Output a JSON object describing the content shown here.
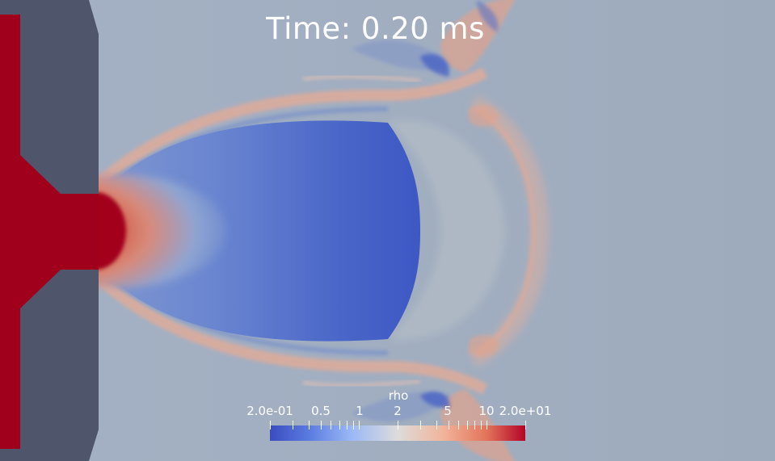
{
  "overlay": {
    "time_label": "Time: 0.20 ms"
  },
  "colorbar": {
    "title": "rho",
    "scale": "log",
    "range": [
      0.2,
      20
    ],
    "colormap": "coolwarm",
    "low_color": "#3b4cc0",
    "mid_color": "#dcdcdc",
    "high_color": "#b40426",
    "labels": [
      "2.0e-01",
      "0.5",
      "1",
      "2",
      "5",
      "10",
      "2.0e+01"
    ]
  },
  "colors": {
    "background_field": "#a2afc2",
    "nozzle_wall": "#4f566b",
    "high_density_core": "#a0001c",
    "expansion_region": "#3f5cc6",
    "shock_layer": "#e6a890"
  }
}
